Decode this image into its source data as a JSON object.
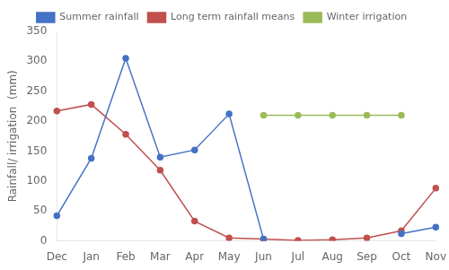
{
  "chart_data": {
    "type": "line",
    "categories": [
      "Dec",
      "Jan",
      "Feb",
      "Mar",
      "Apr",
      "May",
      "Jun",
      "Jul",
      "Aug",
      "Sep",
      "Oct",
      "Nov"
    ],
    "series": [
      {
        "name": "Summer rainfall",
        "color": "#4472C4",
        "values": [
          42,
          138,
          305,
          140,
          152,
          212,
          3,
          null,
          null,
          null,
          12,
          23
        ]
      },
      {
        "name": "Long term rainfall means",
        "color": "#C0504D",
        "values": [
          217,
          228,
          178,
          118,
          33,
          5,
          3,
          1,
          2,
          5,
          17,
          88
        ]
      },
      {
        "name": "Winter irrigation",
        "color": "#9BBB59",
        "values": [
          null,
          null,
          null,
          null,
          null,
          null,
          210,
          210,
          210,
          210,
          210,
          null
        ]
      }
    ],
    "ylabel": "Rainfall/ irrigation  (mm)",
    "ylim": [
      0,
      350
    ],
    "yticks": [
      0,
      50,
      100,
      150,
      200,
      250,
      300,
      350
    ],
    "marker": "circle",
    "grid": false,
    "legend": "top"
  }
}
